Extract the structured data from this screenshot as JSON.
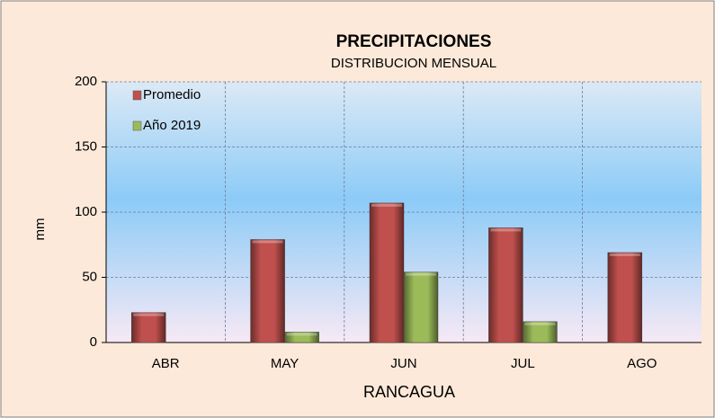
{
  "chart_data": {
    "type": "bar",
    "title": "PRECIPITACIONES",
    "subtitle": "DISTRIBUCION MENSUAL",
    "x_label": "RANCAGUA",
    "y_label": "mm",
    "categories": [
      "ABR",
      "MAY",
      "JUN",
      "JUL",
      "AGO"
    ],
    "series": [
      {
        "name": "Promedio",
        "color": "#c0504d",
        "values": [
          23,
          79,
          107,
          88,
          69
        ]
      },
      {
        "name": "Año 2019",
        "color": "#9bbb59",
        "values": [
          0,
          8,
          54,
          16,
          null
        ]
      }
    ],
    "ylim": [
      0,
      200
    ],
    "yticks": [
      0,
      50,
      100,
      150,
      200
    ],
    "grid": true,
    "legend": "top-left"
  }
}
